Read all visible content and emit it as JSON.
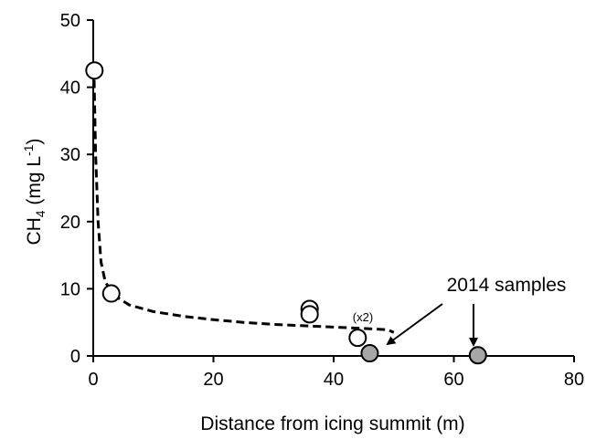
{
  "chart_data": {
    "type": "scatter",
    "title": "",
    "xlabel": "Distance from icing summit (m)",
    "ylabel_main": "CH",
    "ylabel_sub": "4",
    "ylabel_unit_open": " (mg L",
    "ylabel_unit_sup": "-1",
    "ylabel_unit_close": ")",
    "xlim": [
      0,
      80
    ],
    "ylim": [
      0,
      50
    ],
    "xticks": [
      0,
      20,
      40,
      60,
      80
    ],
    "yticks": [
      0,
      10,
      20,
      30,
      40,
      50
    ],
    "grid": false,
    "series": [
      {
        "marker": "open-circle",
        "points": [
          {
            "x": 0.2,
            "y": 42.5
          },
          {
            "x": 3.0,
            "y": 9.3
          },
          {
            "x": 36.0,
            "y": 7.0
          },
          {
            "x": 36.0,
            "y": 6.2
          },
          {
            "x": 44.0,
            "y": 2.7
          }
        ]
      },
      {
        "marker": "gray-filled-circle",
        "color": "#a6a6a6",
        "points": [
          {
            "x": 46.0,
            "y": 0.4
          },
          {
            "x": 64.0,
            "y": 0.1
          }
        ]
      }
    ],
    "trend_line": {
      "style": "dashed",
      "points": [
        {
          "x": 0.1,
          "y": 43.0
        },
        {
          "x": 0.4,
          "y": 30.0
        },
        {
          "x": 0.8,
          "y": 20.0
        },
        {
          "x": 1.3,
          "y": 14.0
        },
        {
          "x": 2.0,
          "y": 11.0
        },
        {
          "x": 3.5,
          "y": 9.0
        },
        {
          "x": 6.0,
          "y": 7.6
        },
        {
          "x": 10.0,
          "y": 6.6
        },
        {
          "x": 15.0,
          "y": 5.9
        },
        {
          "x": 20.0,
          "y": 5.4
        },
        {
          "x": 25.0,
          "y": 5.0
        },
        {
          "x": 30.0,
          "y": 4.7
        },
        {
          "x": 35.0,
          "y": 4.5
        },
        {
          "x": 40.0,
          "y": 4.3
        },
        {
          "x": 45.0,
          "y": 4.1
        },
        {
          "x": 49.0,
          "y": 3.9
        },
        {
          "x": 50.0,
          "y": 3.5
        }
      ]
    },
    "annotations": {
      "multiplier_label": "(x2)",
      "samples_label": "2014 samples"
    }
  }
}
